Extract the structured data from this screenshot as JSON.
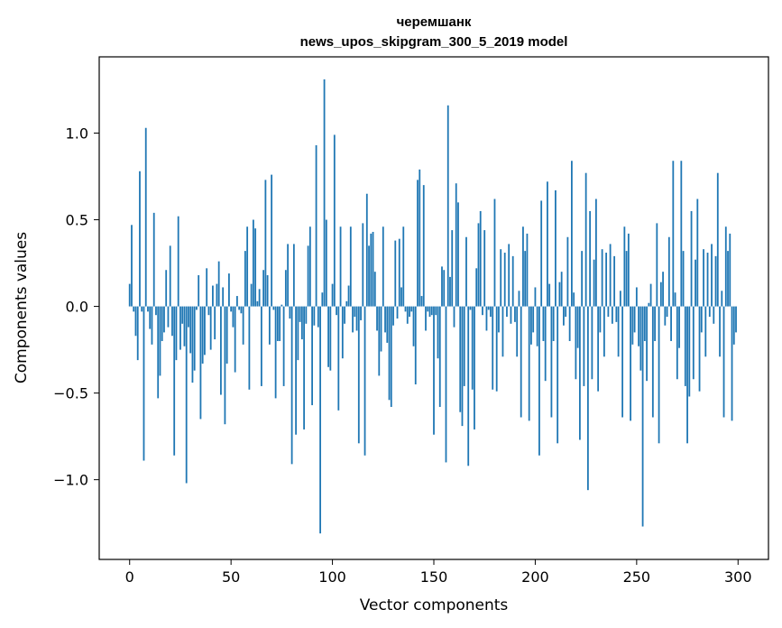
{
  "chart_data": {
    "type": "bar",
    "title": "черемшанк",
    "subtitle": "news_upos_skipgram_300_5_2019 model",
    "xlabel": "Vector components",
    "ylabel": "Components values",
    "xlim": [
      -15,
      315
    ],
    "ylim": [
      -1.46,
      1.44
    ],
    "xticks": [
      0,
      50,
      100,
      150,
      200,
      250,
      300
    ],
    "xtick_labels": [
      "0",
      "50",
      "100",
      "150",
      "200",
      "250",
      "300"
    ],
    "yticks": [
      -1.0,
      -0.5,
      0.0,
      0.5,
      1.0
    ],
    "ytick_labels": [
      "−1.0",
      "−0.5",
      "0.0",
      "0.5",
      "1.0"
    ],
    "bar_color": "#1f77b4",
    "grid": false,
    "values": [
      0.13,
      0.47,
      -0.03,
      -0.17,
      -0.31,
      0.78,
      -0.03,
      -0.89,
      1.03,
      -0.03,
      -0.13,
      -0.22,
      0.54,
      -0.05,
      -0.53,
      -0.4,
      -0.2,
      -0.15,
      0.21,
      -0.12,
      0.35,
      -0.17,
      -0.86,
      -0.31,
      0.52,
      -0.25,
      -0.1,
      -0.23,
      -1.02,
      -0.12,
      -0.27,
      -0.44,
      -0.37,
      -0.02,
      0.18,
      -0.65,
      -0.33,
      -0.28,
      0.22,
      -0.05,
      -0.25,
      0.12,
      -0.19,
      0.13,
      0.26,
      -0.51,
      0.11,
      -0.68,
      -0.33,
      0.19,
      -0.03,
      -0.12,
      -0.38,
      0.06,
      -0.02,
      -0.04,
      -0.22,
      0.32,
      0.46,
      -0.48,
      0.13,
      0.5,
      0.45,
      0.03,
      0.1,
      -0.46,
      0.21,
      0.73,
      0.18,
      -0.22,
      0.76,
      -0.02,
      -0.53,
      -0.2,
      -0.2,
      0.01,
      -0.46,
      0.21,
      0.36,
      -0.07,
      -0.91,
      0.36,
      -0.74,
      -0.31,
      -0.09,
      -0.19,
      -0.71,
      -0.1,
      0.35,
      0.46,
      -0.57,
      -0.11,
      0.93,
      -0.12,
      -1.31,
      0.08,
      1.31,
      0.5,
      -0.35,
      -0.37,
      0.13,
      0.99,
      -0.05,
      -0.6,
      0.46,
      -0.3,
      -0.1,
      0.03,
      0.12,
      0.46,
      -0.15,
      -0.06,
      -0.14,
      -0.79,
      -0.08,
      0.48,
      -0.86,
      0.65,
      0.35,
      0.42,
      0.43,
      0.2,
      -0.14,
      -0.4,
      -0.26,
      0.46,
      -0.15,
      -0.21,
      -0.54,
      -0.58,
      -0.11,
      0.38,
      -0.07,
      0.39,
      0.11,
      0.46,
      -0.03,
      -0.1,
      -0.06,
      -0.03,
      -0.23,
      -0.45,
      0.73,
      0.79,
      0.06,
      0.7,
      -0.14,
      -0.03,
      -0.06,
      -0.05,
      -0.74,
      -0.05,
      -0.3,
      -0.58,
      0.23,
      0.21,
      -0.9,
      1.16,
      0.17,
      0.44,
      -0.12,
      0.71,
      0.6,
      -0.61,
      -0.69,
      -0.46,
      0.4,
      -0.92,
      -0.02,
      -0.48,
      -0.71,
      0.22,
      0.48,
      0.55,
      -0.05,
      0.44,
      -0.14,
      -0.02,
      -0.06,
      -0.48
    ],
    "values_note_hidden": ""
  }
}
